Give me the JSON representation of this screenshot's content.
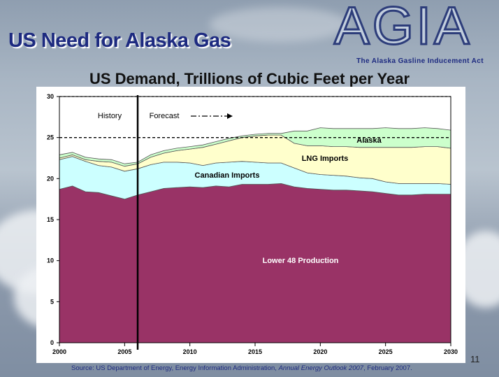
{
  "slide": {
    "title": "US Need for Alaska Gas",
    "page_number": "11",
    "logo_text": "AGIA",
    "logo_subtitle": "The Alaska Gasline Inducement Act",
    "source_prefix": "Source:  US Department of Energy, Energy Information Administration, ",
    "source_italic": "Annual Energy Outlook 2007",
    "source_suffix": ", February 2007."
  },
  "chart_data": {
    "type": "area",
    "title": "US Demand, Trillions of Cubic Feet per Year",
    "xlabel": "",
    "ylabel": "",
    "xlim": [
      2000,
      2030
    ],
    "ylim": [
      0,
      30
    ],
    "x_ticks": [
      2000,
      2005,
      2010,
      2015,
      2020,
      2025,
      2030
    ],
    "y_ticks": [
      0,
      5,
      10,
      15,
      20,
      25,
      30
    ],
    "reference_line_y": 25,
    "divider_x": 2006,
    "labels": {
      "history": "History",
      "forecast": "Forecast"
    },
    "x": [
      2000,
      2001,
      2002,
      2003,
      2004,
      2005,
      2006,
      2007,
      2008,
      2009,
      2010,
      2011,
      2012,
      2013,
      2014,
      2015,
      2016,
      2017,
      2018,
      2019,
      2020,
      2021,
      2022,
      2023,
      2024,
      2025,
      2026,
      2027,
      2028,
      2029,
      2030
    ],
    "stacked": true,
    "series": [
      {
        "name": "Lower 48 Production",
        "color": "#993366",
        "values": [
          18.7,
          19.1,
          18.4,
          18.3,
          17.9,
          17.5,
          18.0,
          18.4,
          18.8,
          18.9,
          19.0,
          18.9,
          19.1,
          19.0,
          19.3,
          19.3,
          19.3,
          19.4,
          19.0,
          18.8,
          18.7,
          18.6,
          18.6,
          18.5,
          18.4,
          18.2,
          18.0,
          18.0,
          18.1,
          18.1,
          18.1
        ]
      },
      {
        "name": "Canadian Imports",
        "color": "#ccffff",
        "values": [
          3.6,
          3.6,
          3.7,
          3.3,
          3.5,
          3.4,
          3.2,
          3.3,
          3.2,
          3.1,
          2.9,
          2.7,
          2.8,
          3.0,
          2.8,
          2.7,
          2.6,
          2.5,
          2.3,
          1.9,
          1.8,
          1.8,
          1.7,
          1.6,
          1.6,
          1.4,
          1.4,
          1.4,
          1.3,
          1.3,
          1.2
        ]
      },
      {
        "name": "LNG Imports",
        "color": "#ffffcc",
        "values": [
          0.2,
          0.2,
          0.2,
          0.5,
          0.6,
          0.6,
          0.6,
          0.9,
          1.1,
          1.4,
          1.7,
          2.2,
          2.3,
          2.6,
          2.9,
          3.2,
          3.4,
          3.4,
          3.0,
          3.3,
          3.5,
          3.5,
          3.6,
          3.7,
          3.8,
          4.2,
          4.4,
          4.4,
          4.5,
          4.5,
          4.4
        ]
      },
      {
        "name": "Alaska",
        "color": "#ccffcc",
        "values": [
          0.4,
          0.3,
          0.3,
          0.3,
          0.3,
          0.3,
          0.2,
          0.3,
          0.3,
          0.3,
          0.3,
          0.3,
          0.3,
          0.3,
          0.2,
          0.2,
          0.2,
          0.2,
          1.5,
          1.8,
          2.2,
          2.2,
          2.2,
          2.3,
          2.3,
          2.4,
          2.3,
          2.3,
          2.3,
          2.2,
          2.2
        ]
      }
    ]
  }
}
